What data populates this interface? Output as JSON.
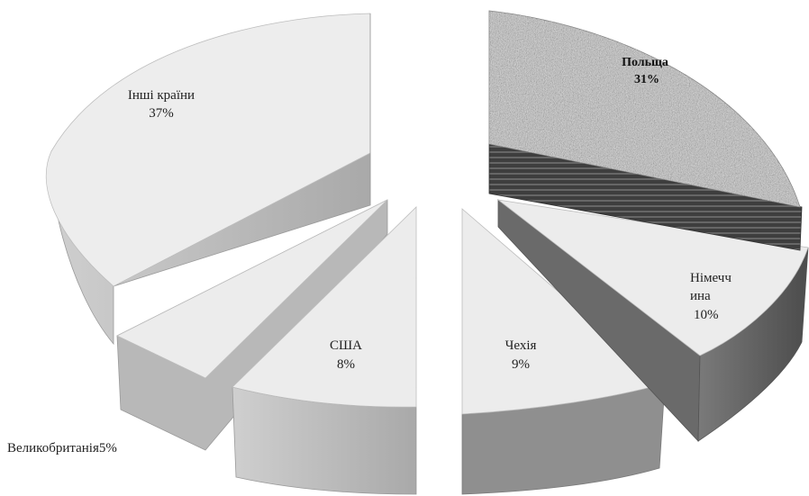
{
  "chart_data": {
    "type": "pie",
    "style": "3d-exploded",
    "title": "",
    "slices": [
      {
        "key": "poland",
        "label": "Польща",
        "percent": "31%",
        "value": 31,
        "top_color": "#b8b8b8",
        "side_color": "#4a4a4a",
        "textured": true
      },
      {
        "key": "germany",
        "label": "Німечч\nина",
        "percent": "10%",
        "value": 10,
        "top_color": "#ececec",
        "side_color": "#6e6e6e"
      },
      {
        "key": "czechia",
        "label": "Чехія",
        "percent": "9%",
        "value": 9,
        "top_color": "#ececec",
        "side_color": "#8f8f8f"
      },
      {
        "key": "usa",
        "label": "США",
        "percent": "8%",
        "value": 8,
        "top_color": "#ececec",
        "side_color": "#a5a5a5"
      },
      {
        "key": "uk",
        "label": "Великобританія",
        "percent": "5%",
        "value": 5,
        "top_color": "#ececec",
        "side_color": "#b8b8b8"
      },
      {
        "key": "other",
        "label": "Інші країни",
        "percent": "37%",
        "value": 37,
        "top_color": "#ededed",
        "side_color": "#b2b2b2"
      }
    ]
  }
}
